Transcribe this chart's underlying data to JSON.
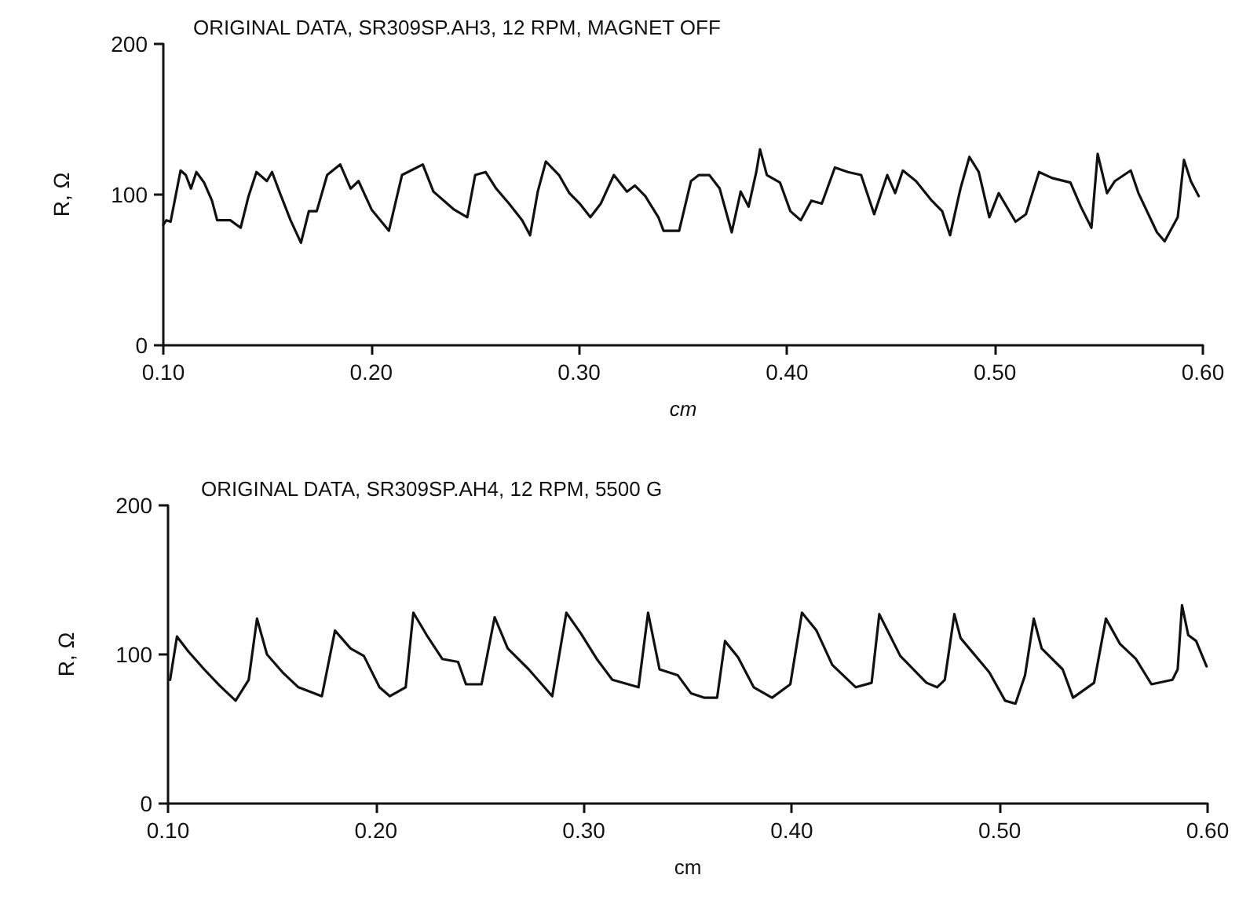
{
  "chart_data": [
    {
      "type": "line",
      "title": "ORIGINAL DATA, SR309SP.AH3, 12 RPM, MAGNET OFF",
      "xlabel": "cm",
      "ylabel": "R, Ω",
      "xlim": [
        0.1,
        0.6
      ],
      "xticks": [
        {
          "value": 0.1,
          "label": "0.10"
        },
        {
          "value": 0.2,
          "label": "0.20"
        },
        {
          "value": 0.3,
          "label": "0.30"
        },
        {
          "value": 0.4,
          "label": "0.40"
        },
        {
          "value": 0.5,
          "label": "0.50"
        },
        {
          "value": 0.6,
          "label": "0.60"
        }
      ],
      "ylim": [
        0,
        200
      ],
      "yticks": [
        0,
        100,
        200
      ],
      "grid": false,
      "marker": "none",
      "line_style": "solid",
      "series": [
        {
          "color": "#111111",
          "x": [
            0.1,
            0.1015,
            0.1035,
            0.1083,
            0.1108,
            0.1133,
            0.1159,
            0.1196,
            0.1234,
            0.1259,
            0.1322,
            0.1372,
            0.141,
            0.1448,
            0.1498,
            0.1523,
            0.1561,
            0.1612,
            0.1662,
            0.17,
            0.1738,
            0.1788,
            0.1851,
            0.1901,
            0.1939,
            0.2002,
            0.2085,
            0.2148,
            0.2248,
            0.2299,
            0.2399,
            0.2462,
            0.25,
            0.255,
            0.2601,
            0.2663,
            0.2726,
            0.2764,
            0.2801,
            0.284,
            0.2903,
            0.2953,
            0.3003,
            0.3054,
            0.3104,
            0.3167,
            0.323,
            0.3268,
            0.3318,
            0.3381,
            0.3406,
            0.3481,
            0.3538,
            0.3576,
            0.3626,
            0.3676,
            0.3734,
            0.3777,
            0.3815,
            0.3852,
            0.387,
            0.3903,
            0.3966,
            0.4016,
            0.4066,
            0.4117,
            0.4167,
            0.423,
            0.4293,
            0.4356,
            0.4419,
            0.4482,
            0.452,
            0.4557,
            0.462,
            0.4696,
            0.4746,
            0.4784,
            0.4834,
            0.4877,
            0.4922,
            0.4973,
            0.5018,
            0.5099,
            0.5149,
            0.5212,
            0.5275,
            0.5363,
            0.5413,
            0.5464,
            0.5494,
            0.5539,
            0.5577,
            0.5653,
            0.569,
            0.5779,
            0.5816,
            0.5879,
            0.5909,
            0.5942,
            0.598
          ],
          "values": [
            80,
            83,
            82,
            116,
            113,
            104,
            115,
            108,
            96,
            83,
            83,
            78,
            99,
            115,
            109,
            115,
            101,
            83,
            68,
            89,
            89,
            113,
            120,
            104,
            109,
            90,
            76,
            113,
            120,
            102,
            90,
            85,
            113,
            115,
            104,
            94,
            83,
            73,
            102,
            122,
            113,
            101,
            94,
            85,
            94,
            113,
            102,
            106,
            99,
            85,
            76,
            76,
            109,
            113,
            113,
            104,
            75,
            102,
            92,
            115,
            130,
            113,
            108,
            89,
            83,
            96,
            94,
            118,
            115,
            113,
            87,
            113,
            101,
            116,
            109,
            96,
            89,
            73,
            104,
            125,
            115,
            85,
            101,
            82,
            87,
            115,
            111,
            108,
            92,
            78,
            127,
            101,
            109,
            116,
            101,
            75,
            69,
            85,
            123,
            109,
            99
          ]
        }
      ]
    },
    {
      "type": "line",
      "title": "ORIGINAL DATA, SR309SP.AH4, 12 RPM, 5500 G",
      "xlabel": "cm",
      "ylabel": "R, Ω",
      "xlim": [
        0.1,
        0.6
      ],
      "xticks": [
        {
          "value": 0.1,
          "label": "0.10"
        },
        {
          "value": 0.2,
          "label": "0.20"
        },
        {
          "value": 0.3,
          "label": "0.30"
        },
        {
          "value": 0.4,
          "label": "0.40"
        },
        {
          "value": 0.5,
          "label": "0.50"
        },
        {
          "value": 0.6,
          "label": "0.60"
        }
      ],
      "ylim": [
        0,
        200
      ],
      "yticks": [
        0,
        100,
        200
      ],
      "grid": false,
      "marker": "none",
      "line_style": "solid",
      "series": [
        {
          "color": "#111111",
          "x": [
            0.101,
            0.1043,
            0.1098,
            0.1174,
            0.1249,
            0.1325,
            0.1388,
            0.1428,
            0.1476,
            0.1551,
            0.1627,
            0.174,
            0.1803,
            0.1878,
            0.1942,
            0.2017,
            0.2067,
            0.2143,
            0.218,
            0.2244,
            0.2319,
            0.2395,
            0.2433,
            0.2508,
            0.2571,
            0.2634,
            0.2735,
            0.2848,
            0.2916,
            0.2986,
            0.3062,
            0.3137,
            0.3263,
            0.3309,
            0.3364,
            0.3452,
            0.3515,
            0.3578,
            0.3641,
            0.3679,
            0.3742,
            0.3817,
            0.3905,
            0.3993,
            0.4049,
            0.4119,
            0.4195,
            0.4308,
            0.4384,
            0.4421,
            0.4522,
            0.4648,
            0.4699,
            0.4736,
            0.4782,
            0.4812,
            0.495,
            0.5026,
            0.5076,
            0.5122,
            0.5164,
            0.5202,
            0.5303,
            0.5353,
            0.5454,
            0.5511,
            0.5579,
            0.5655,
            0.573,
            0.5831,
            0.5856,
            0.5877,
            0.5907,
            0.5945,
            0.5995
          ],
          "values": [
            83,
            112,
            102,
            90,
            79,
            69,
            83,
            124,
            100,
            88,
            78,
            72,
            116,
            104,
            99,
            78,
            72,
            78,
            128,
            113,
            97,
            95,
            80,
            80,
            125,
            104,
            90,
            72,
            128,
            114,
            97,
            83,
            78,
            128,
            90,
            86,
            74,
            71,
            71,
            109,
            98,
            78,
            71,
            80,
            128,
            116,
            93,
            78,
            81,
            127,
            99,
            81,
            78,
            83,
            127,
            111,
            88,
            69,
            67,
            86,
            124,
            104,
            90,
            71,
            81,
            124,
            107,
            97,
            80,
            83,
            90,
            133,
            113,
            109,
            92
          ]
        }
      ]
    }
  ]
}
